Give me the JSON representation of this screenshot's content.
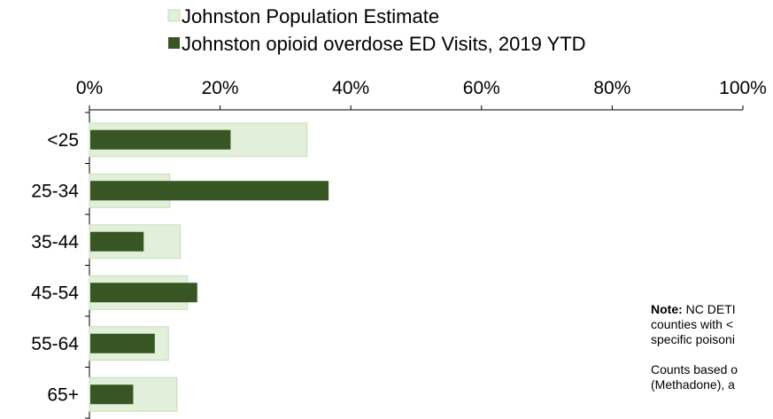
{
  "chart_data": {
    "type": "bar",
    "orientation": "horizontal",
    "title": "",
    "categories": [
      "<25",
      "25-34",
      "35-44",
      "45-54",
      "55-64",
      "65+"
    ],
    "series": [
      {
        "name": "Johnston Population Estimate",
        "values": [
          33.3,
          12.3,
          13.9,
          15.0,
          12.1,
          13.4
        ],
        "color": "#e2efda",
        "border": "#c5e0b4"
      },
      {
        "name": "Johnston opioid overdose ED Visits, 2019 YTD",
        "values": [
          21.6,
          36.6,
          8.3,
          16.5,
          10.0,
          6.7
        ],
        "color": "#375623"
      }
    ],
    "xlim": [
      0,
      100
    ],
    "xticks": [
      "0%",
      "20%",
      "40%",
      "60%",
      "80%",
      "100%"
    ],
    "grid": false,
    "legend_position": "top"
  },
  "note": {
    "label": "Note:",
    "line1": " NC DETI",
    "line2": "counties with <",
    "line3": "specific poisoni",
    "line4": "Counts based o",
    "line5": "(Methadone), a"
  }
}
